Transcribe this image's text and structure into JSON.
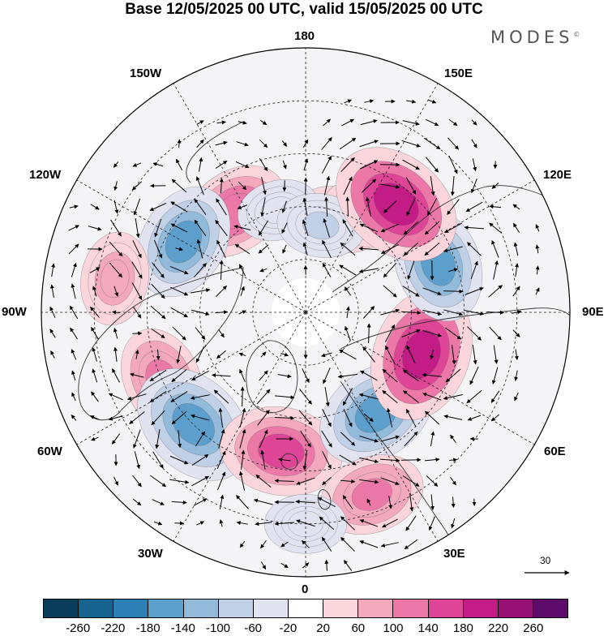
{
  "title": "Base 12/05/2025 00 UTC, valid 15/05/2025 00 UTC",
  "brand": "MODES",
  "brand_mark": "©",
  "longitude_labels": {
    "top": "180",
    "bottom": "0",
    "left": "90W",
    "right": "90E",
    "upper_left_1": "150W",
    "upper_left_2": "120W",
    "upper_right_1": "150E",
    "upper_right_2": "120E",
    "lower_left_1": "60W",
    "lower_left_2": "30W",
    "lower_right_1": "60E",
    "lower_right_2": "30E"
  },
  "reference_vector": {
    "value": "30"
  },
  "colorbar": {
    "colors": [
      "#0a3d5c",
      "#15638e",
      "#2c80b4",
      "#5c9fcc",
      "#92bbdb",
      "#c0d0e6",
      "#e1e3f0",
      "#ffffff",
      "#fbd5dc",
      "#f4a8be",
      "#ec78a8",
      "#de4596",
      "#c41c87",
      "#961173",
      "#5e0c6b"
    ],
    "ticks": [
      "-260",
      "-220",
      "-180",
      "-140",
      "-100",
      "-60",
      "-20",
      "20",
      "60",
      "100",
      "140",
      "180",
      "220",
      "260"
    ]
  },
  "anomaly_centers": [
    {
      "lon": 160,
      "lat": 62,
      "value": 80,
      "sign": "positive"
    },
    {
      "lon": 150,
      "lat": 58,
      "value": 60,
      "sign": "positive"
    },
    {
      "lon": -145,
      "lat": 55,
      "value": 160,
      "sign": "positive"
    },
    {
      "lon": -165,
      "lat": 60,
      "value": -60,
      "sign": "negative"
    },
    {
      "lon": 170,
      "lat": 65,
      "value": -80,
      "sign": "negative"
    },
    {
      "lon": -120,
      "lat": 50,
      "value": -180,
      "sign": "negative"
    },
    {
      "lon": -100,
      "lat": 35,
      "value": 100,
      "sign": "positive"
    },
    {
      "lon": -65,
      "lat": 45,
      "value": 140,
      "sign": "positive"
    },
    {
      "lon": -45,
      "lat": 45,
      "value": -220,
      "sign": "negative"
    },
    {
      "lon": -10,
      "lat": 50,
      "value": 200,
      "sign": "positive"
    },
    {
      "lon": 35,
      "lat": 55,
      "value": -200,
      "sign": "negative"
    },
    {
      "lon": 70,
      "lat": 55,
      "value": 240,
      "sign": "positive"
    },
    {
      "lon": 110,
      "lat": 50,
      "value": -180,
      "sign": "negative"
    },
    {
      "lon": 140,
      "lat": 50,
      "value": 240,
      "sign": "positive"
    },
    {
      "lon": 20,
      "lat": 35,
      "value": 140,
      "sign": "positive"
    },
    {
      "lon": 0,
      "lat": 30,
      "value": -60,
      "sign": "negative"
    }
  ]
}
